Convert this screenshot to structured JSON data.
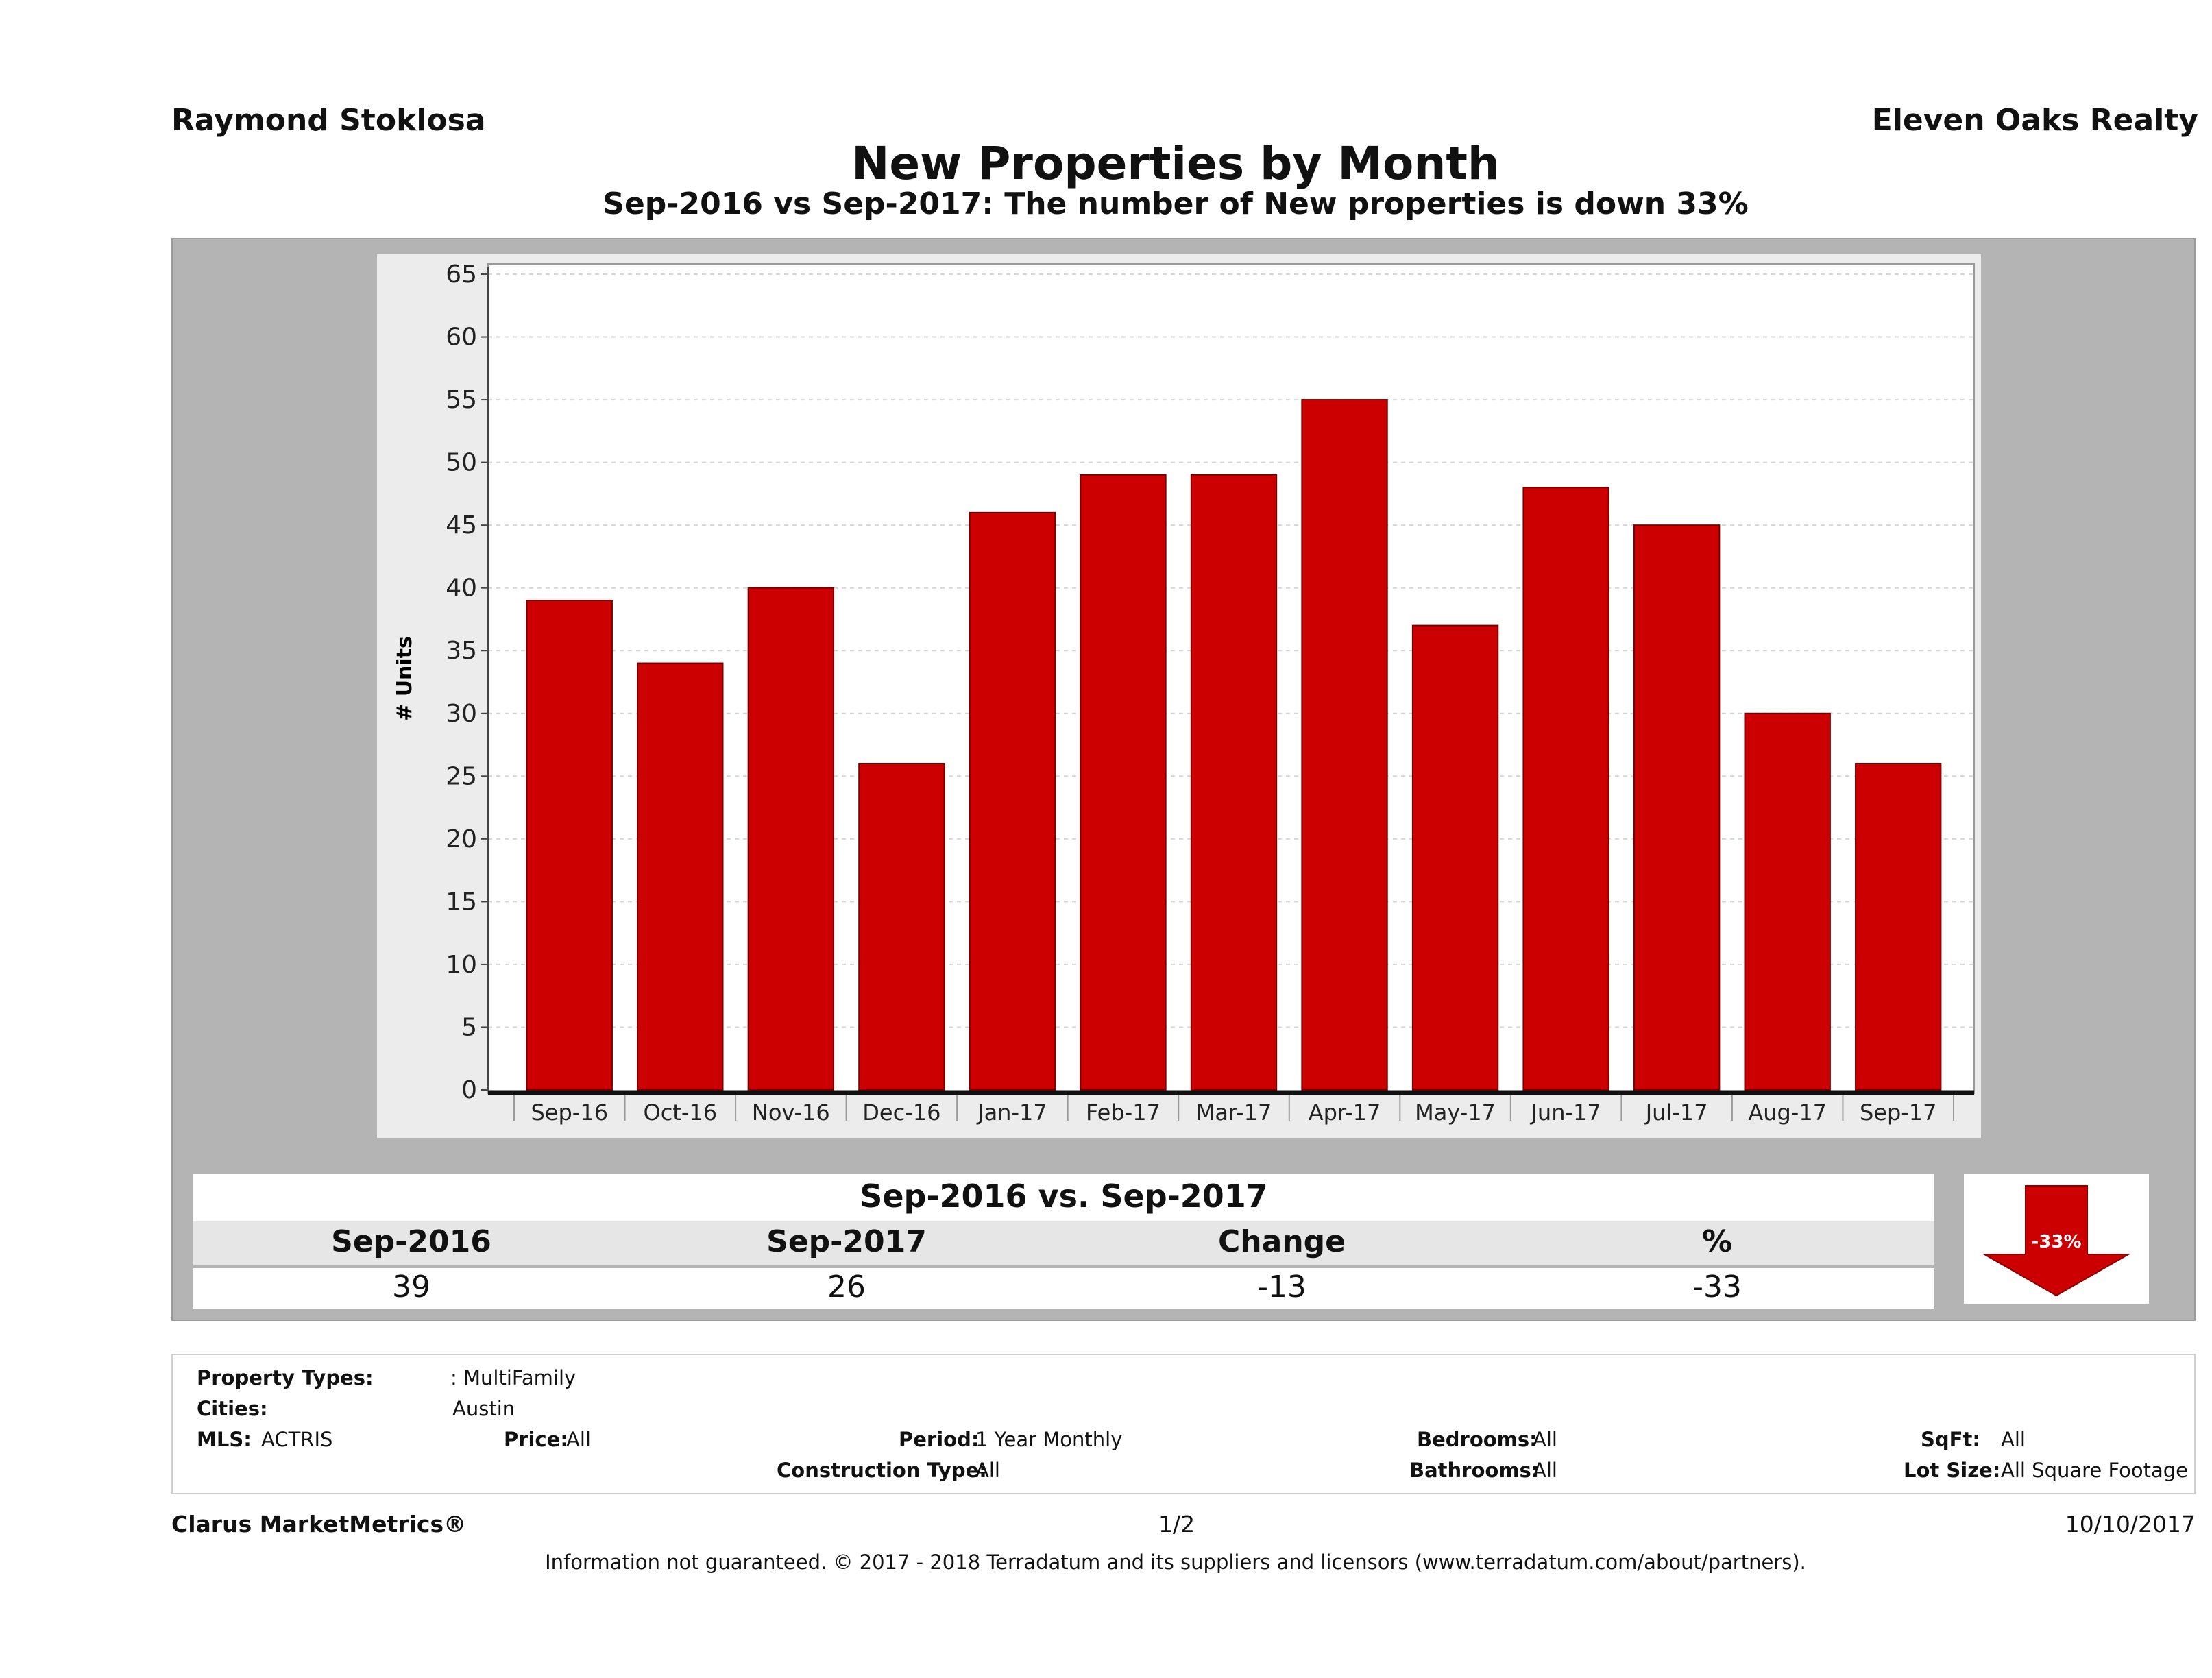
{
  "header": {
    "agent": "Raymond Stoklosa",
    "company": "Eleven Oaks Realty",
    "title": "New Properties by Month",
    "subtitle": "Sep-2016 vs Sep-2017: The number of New  properties is down 33%"
  },
  "colors": {
    "bar": "#cc0000",
    "panel_bg": "#b4b4b4",
    "chart_bg": "#ececec"
  },
  "chart_data": {
    "type": "bar",
    "title": "New Properties by Month",
    "xlabel": "",
    "ylabel": "# Units",
    "ylim": [
      0,
      65
    ],
    "yticks": [
      0,
      5,
      10,
      15,
      20,
      25,
      30,
      35,
      40,
      45,
      50,
      55,
      60,
      65
    ],
    "grid": true,
    "categories": [
      "Sep-16",
      "Oct-16",
      "Nov-16",
      "Dec-16",
      "Jan-17",
      "Feb-17",
      "Mar-17",
      "Apr-17",
      "May-17",
      "Jun-17",
      "Jul-17",
      "Aug-17",
      "Sep-17"
    ],
    "values": [
      39,
      34,
      40,
      26,
      46,
      49,
      49,
      55,
      37,
      48,
      45,
      30,
      26
    ]
  },
  "comparison": {
    "title": "Sep-2016 vs. Sep-2017",
    "headers": [
      "Sep-2016",
      "Sep-2017",
      "Change",
      "%"
    ],
    "values": [
      "39",
      "26",
      "-13",
      "-33"
    ],
    "badge": "-33%"
  },
  "criteria": {
    "property_types_label": "Property Types:",
    "property_types_value": ": MultiFamily",
    "cities_label": "Cities:",
    "cities_value": "Austin",
    "mls_label": "MLS:",
    "mls_value": "ACTRIS",
    "price_label": "Price:",
    "price_value": "All",
    "period_label": "Period:",
    "period_value": "1 Year Monthly",
    "construction_label": "Construction Type:",
    "construction_value": "All",
    "bedrooms_label": "Bedrooms:",
    "bedrooms_value": "All",
    "bathrooms_label": "Bathrooms:",
    "bathrooms_value": "All",
    "sqft_label": "SqFt:",
    "sqft_value": "All",
    "lotsize_label": "Lot Size:",
    "lotsize_value": "All Square Footage"
  },
  "footer": {
    "brand": "Clarus MarketMetrics®",
    "page": "1/2",
    "date": "10/10/2017",
    "disclaimer": "Information not guaranteed. © 2017 - 2018 Terradatum and its suppliers and licensors (www.terradatum.com/about/partners)."
  }
}
